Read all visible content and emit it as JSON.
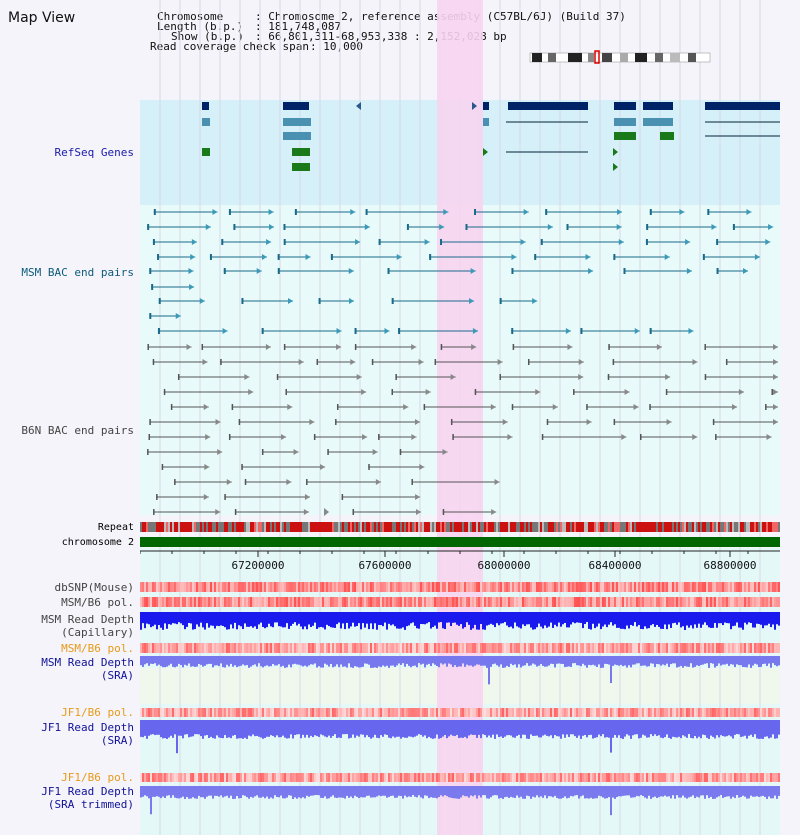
{
  "title": "Map View",
  "info": {
    "chromosome_label": "Chromosome",
    "chromosome_value": ": Chromosome 2, reference assembly (C57BL/6J) (Build 37)",
    "length_label": "Length (b.p.)",
    "length_value": ": 181,748,087",
    "show_label": "Show (b.p.)",
    "show_value": ": 66,801,311-68,953,338 : 2,152,028 bp",
    "coverage_label": "Read coverage check span",
    "coverage_value": ": 10,000"
  },
  "tracks": {
    "refseq": "RefSeq Genes",
    "msm_bac": "MSM BAC end pairs",
    "b6n_bac": "B6N BAC end pairs",
    "repeat": "Repeat",
    "chromosome": "chromosome 2",
    "dbsnp": "dbSNP(Mouse)",
    "msm_b6_pol": "MSM/B6 pol.",
    "msm_depth_cap": "MSM Read Depth\n(Capillary)",
    "msm_b6_pol2": "MSM/B6 pol.",
    "msm_depth_sra": "MSM Read Depth\n(SRA)",
    "jf1_b6_pol": "JF1/B6 pol.",
    "jf1_depth_sra": "JF1 Read Depth\n(SRA)",
    "jf1_b6_pol2": "JF1/B6 pol.",
    "jf1_depth_trim": "JF1 Read Depth\n(SRA trimmed)"
  },
  "axis_ticks": [
    "67200000",
    "67600000",
    "68000000",
    "68400000",
    "68800000"
  ],
  "colors": {
    "highlight": "#f7d4f0",
    "refseq_bg": "#d6f0fa",
    "bac_bg": "#e8fafa",
    "chromosome_bar": "#006600",
    "depth_blue": "#1a1aee",
    "depth_light": "#7777ee"
  }
}
